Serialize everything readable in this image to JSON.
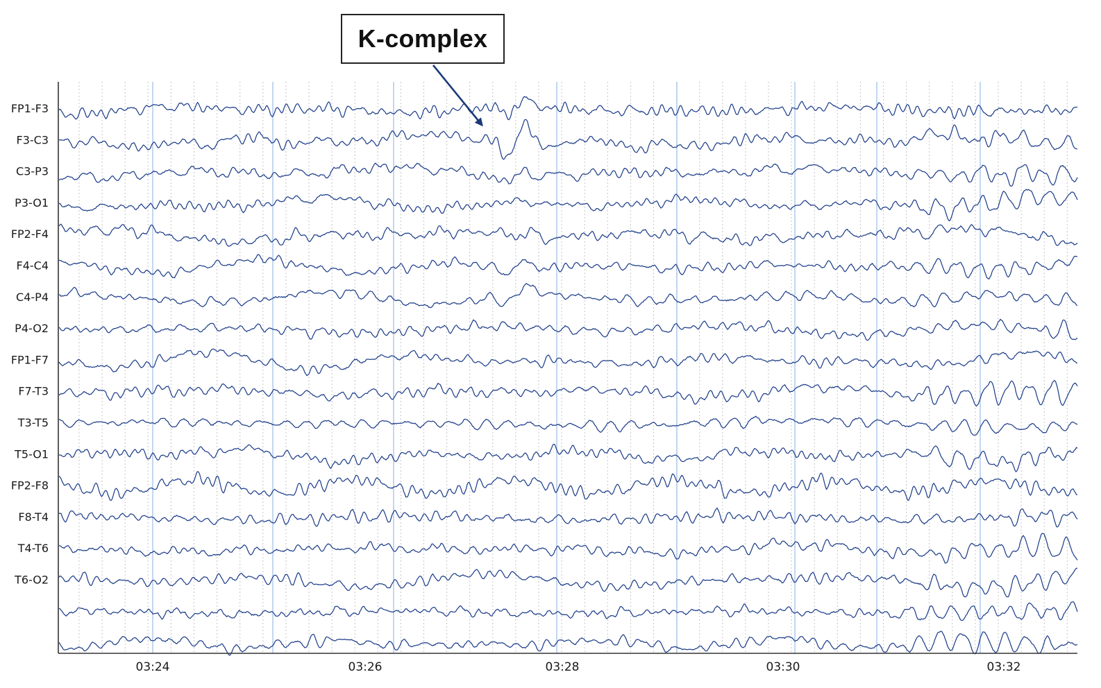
{
  "chart_data": {
    "type": "line",
    "title": "",
    "xlabel": "",
    "ylabel": "",
    "x_unit": "mm:ss",
    "xlim": [
      "03:23:12",
      "03:32:38"
    ],
    "x_ticks": [
      {
        "value": "03:24",
        "label": "03:24"
      },
      {
        "value": "03:26",
        "label": "03:26"
      },
      {
        "value": "03:28",
        "label": "03:28"
      },
      {
        "value": "03:30",
        "label": "03:30"
      },
      {
        "value": "03:32",
        "label": "03:32"
      }
    ],
    "grid": true,
    "channels": [
      {
        "name": "FP1-F3"
      },
      {
        "name": "F3-C3"
      },
      {
        "name": "C3-P3"
      },
      {
        "name": "P3-O1"
      },
      {
        "name": "FP2-F4"
      },
      {
        "name": "F4-C4"
      },
      {
        "name": "C4-P4"
      },
      {
        "name": "P4-O2"
      },
      {
        "name": "FP1-F7"
      },
      {
        "name": "F7-T3"
      },
      {
        "name": "T3-T5"
      },
      {
        "name": "T5-O1"
      },
      {
        "name": "FP2-F8"
      },
      {
        "name": "F8-T4"
      },
      {
        "name": "T4-T6"
      },
      {
        "name": "T6-O2"
      },
      {
        "name": ""
      },
      {
        "name": ""
      }
    ],
    "spindle_burst": {
      "start": "03:31:00",
      "end": "03:32:38",
      "channels": [
        1,
        2,
        3,
        5,
        6,
        7,
        9,
        10,
        11,
        13,
        14,
        15,
        16,
        17
      ]
    },
    "annotations": [
      {
        "text": "K-complex",
        "channel": "F3-C3",
        "x": "03:27:25"
      }
    ]
  },
  "colors": {
    "trace": "#1f3f8a",
    "axis": "#333333",
    "major_grid": "#a9c6ea",
    "minor_grid": "#c4c4c4",
    "arrow": "#1a3a78"
  }
}
